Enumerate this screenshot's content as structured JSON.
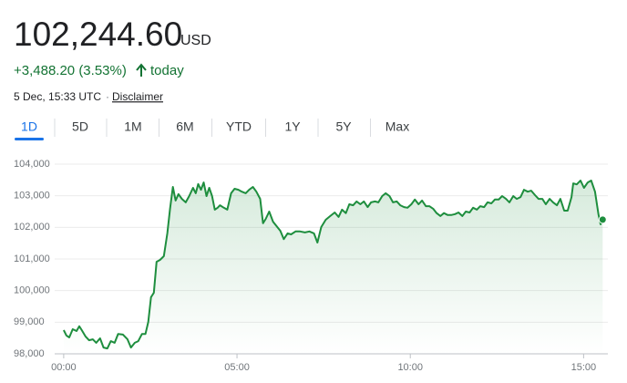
{
  "header": {
    "price": "102,244.60",
    "currency": "USD",
    "change": "+3,488.20 (3.53%)",
    "period": "today",
    "timestamp": "5 Dec, 15:33 UTC",
    "separator": "·",
    "disclaimer": "Disclaimer"
  },
  "tabs": {
    "items": [
      "1D",
      "5D",
      "1M",
      "6M",
      "YTD",
      "1Y",
      "5Y",
      "Max"
    ],
    "selected": 0
  },
  "chart_data": {
    "type": "line",
    "color": "#1e8e3e",
    "grid": true,
    "x": [
      0,
      0.08,
      0.16,
      0.26,
      0.37,
      0.45,
      0.52,
      0.63,
      0.73,
      0.84,
      0.94,
      1.05,
      1.15,
      1.26,
      1.36,
      1.47,
      1.57,
      1.71,
      1.84,
      1.94,
      2.05,
      2.15,
      2.26,
      2.36,
      2.44,
      2.52,
      2.6,
      2.68,
      2.78,
      2.89,
      2.99,
      3.07,
      3.15,
      3.23,
      3.31,
      3.41,
      3.52,
      3.62,
      3.73,
      3.81,
      3.88,
      3.96,
      4.04,
      4.12,
      4.2,
      4.28,
      4.36,
      4.44,
      4.51,
      4.62,
      4.72,
      4.83,
      4.93,
      5.04,
      5.14,
      5.25,
      5.35,
      5.46,
      5.56,
      5.67,
      5.75,
      5.83,
      5.93,
      6.04,
      6.14,
      6.25,
      6.35,
      6.46,
      6.56,
      6.69,
      6.82,
      6.96,
      7.09,
      7.22,
      7.32,
      7.43,
      7.56,
      7.69,
      7.82,
      7.93,
      8.03,
      8.14,
      8.24,
      8.35,
      8.45,
      8.56,
      8.66,
      8.77,
      8.87,
      8.98,
      9.08,
      9.19,
      9.29,
      9.4,
      9.5,
      9.61,
      9.71,
      9.82,
      9.92,
      10.03,
      10.13,
      10.24,
      10.34,
      10.45,
      10.55,
      10.66,
      10.76,
      10.87,
      10.97,
      11.08,
      11.18,
      11.29,
      11.39,
      11.5,
      11.6,
      11.71,
      11.81,
      11.92,
      12.02,
      12.13,
      12.23,
      12.34,
      12.44,
      12.55,
      12.65,
      12.76,
      12.86,
      12.97,
      13.07,
      13.18,
      13.28,
      13.39,
      13.49,
      13.6,
      13.7,
      13.81,
      13.91,
      14.02,
      14.12,
      14.23,
      14.33,
      14.44,
      14.54,
      14.65,
      14.7,
      14.8,
      14.91,
      15.01,
      15.12,
      15.22,
      15.33,
      15.43,
      15.49,
      15.55
    ],
    "values": [
      98750,
      98580,
      98520,
      98780,
      98720,
      98870,
      98750,
      98550,
      98430,
      98460,
      98350,
      98490,
      98200,
      98170,
      98400,
      98350,
      98630,
      98610,
      98460,
      98200,
      98350,
      98400,
      98630,
      98630,
      99010,
      99790,
      99930,
      100910,
      100970,
      101090,
      101810,
      102590,
      103280,
      102850,
      103050,
      102900,
      102790,
      102990,
      103250,
      103080,
      103370,
      103190,
      103420,
      102990,
      103250,
      102990,
      102560,
      102620,
      102700,
      102620,
      102560,
      103080,
      103220,
      103190,
      103130,
      103080,
      103190,
      103280,
      103130,
      102900,
      102130,
      102270,
      102500,
      102180,
      102040,
      101890,
      101630,
      101810,
      101780,
      101870,
      101870,
      101840,
      101870,
      101810,
      101520,
      102010,
      102240,
      102360,
      102470,
      102330,
      102560,
      102450,
      102730,
      102700,
      102820,
      102730,
      102820,
      102640,
      102790,
      102820,
      102790,
      102990,
      103080,
      102990,
      102790,
      102820,
      102700,
      102640,
      102620,
      102730,
      102880,
      102730,
      102850,
      102670,
      102670,
      102590,
      102450,
      102360,
      102450,
      102390,
      102390,
      102420,
      102470,
      102360,
      102500,
      102470,
      102620,
      102560,
      102670,
      102640,
      102790,
      102760,
      102880,
      102880,
      102990,
      102900,
      102790,
      102990,
      102900,
      102960,
      103190,
      103130,
      103160,
      103020,
      102900,
      102900,
      102730,
      102900,
      102790,
      102700,
      102900,
      102530,
      102530,
      102960,
      103390,
      103360,
      103480,
      103250,
      103420,
      103480,
      103130,
      102410,
      102100,
      102244.6
    ],
    "xlim": [
      -0.26,
      15.7
    ],
    "xticks": [
      {
        "value": 0,
        "label": "00:00"
      },
      {
        "value": 5,
        "label": "05:00"
      },
      {
        "value": 10,
        "label": "10:00"
      },
      {
        "value": 15,
        "label": "15:00"
      }
    ],
    "ylim": [
      98000,
      104000
    ],
    "yticks": [
      {
        "value": 98000,
        "label": "98,000"
      },
      {
        "value": 99000,
        "label": "99,000"
      },
      {
        "value": 100000,
        "label": "100,000"
      },
      {
        "value": 101000,
        "label": "101,000"
      },
      {
        "value": 102000,
        "label": "102,000"
      },
      {
        "value": 103000,
        "label": "103,000"
      },
      {
        "value": 104000,
        "label": "104,000"
      }
    ]
  }
}
